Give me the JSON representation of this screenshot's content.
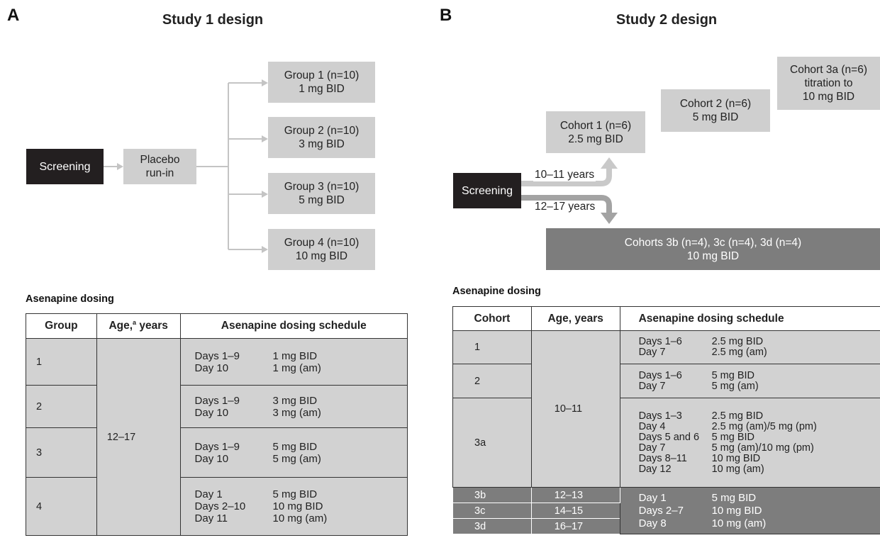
{
  "panelA": {
    "letter": "A",
    "title": "Study 1 design",
    "screening": "Screening",
    "placebo": [
      "Placebo",
      "run-in"
    ],
    "groups": [
      {
        "line1": "Group 1 (n=10)",
        "line2": "1 mg BID"
      },
      {
        "line1": "Group 2 (n=10)",
        "line2": "3 mg BID"
      },
      {
        "line1": "Group 3 (n=10)",
        "line2": "5 mg BID"
      },
      {
        "line1": "Group 4 (n=10)",
        "line2": "10 mg BID"
      }
    ],
    "table_label": "Asenapine dosing",
    "headers": {
      "group": "Group",
      "age_prefix": "Age,",
      "age_sup": "a",
      "age_suffix": " years",
      "schedule": "Asenapine dosing schedule"
    },
    "age_range": "12–17",
    "rows": [
      {
        "group": "1",
        "schedule": [
          [
            "Days 1–9",
            "1 mg BID"
          ],
          [
            "Day 10",
            "1 mg (am)"
          ]
        ]
      },
      {
        "group": "2",
        "schedule": [
          [
            "Days 1–9",
            "3 mg BID"
          ],
          [
            "Day 10",
            "3 mg (am)"
          ]
        ]
      },
      {
        "group": "3",
        "schedule": [
          [
            "Days 1–9",
            "5 mg BID"
          ],
          [
            "Day 10",
            "5 mg (am)"
          ]
        ]
      },
      {
        "group": "4",
        "schedule": [
          [
            "Day 1",
            "5 mg BID"
          ],
          [
            "Days 2–10",
            "10 mg BID"
          ],
          [
            "Day 11",
            "10 mg (am)"
          ]
        ]
      }
    ]
  },
  "panelB": {
    "letter": "B",
    "title": "Study 2 design",
    "screening": "Screening",
    "cohort1": [
      "Cohort 1 (n=6)",
      "2.5 mg BID"
    ],
    "cohort2": [
      "Cohort 2 (n=6)",
      "5 mg BID"
    ],
    "cohort3a": [
      "Cohort 3a (n=6)",
      "titration to",
      "10 mg BID"
    ],
    "cohorts3": [
      "Cohorts 3b (n=4), 3c (n=4), 3d (n=4)",
      "10 mg BID"
    ],
    "age_young": "10–11 years",
    "age_old": "12–17 years",
    "table_label": "Asenapine dosing",
    "headers": {
      "cohort": "Cohort",
      "age": "Age, years",
      "schedule": "Asenapine dosing schedule"
    },
    "age_young_cell": "10–11",
    "rows_light": [
      {
        "cohort": "1",
        "schedule": [
          [
            "Days 1–6",
            "2.5 mg BID"
          ],
          [
            "Day 7",
            "2.5 mg (am)"
          ]
        ]
      },
      {
        "cohort": "2",
        "schedule": [
          [
            "Days 1–6",
            "5 mg BID"
          ],
          [
            "Day 7",
            "5 mg (am)"
          ]
        ]
      },
      {
        "cohort": "3a",
        "schedule": [
          [
            "Days 1–3",
            "2.5 mg BID"
          ],
          [
            "Day 4",
            "2.5 mg (am)/5 mg (pm)"
          ],
          [
            "Days 5 and 6",
            "5 mg BID"
          ],
          [
            "Day 7",
            "5 mg (am)/10 mg (pm)"
          ],
          [
            "Days 8–11",
            "10 mg BID"
          ],
          [
            "Day 12",
            "10 mg (am)"
          ]
        ]
      }
    ],
    "rows_dark": [
      {
        "cohort": "3b",
        "age": "12–13"
      },
      {
        "cohort": "3c",
        "age": "14–15"
      },
      {
        "cohort": "3d",
        "age": "16–17"
      }
    ],
    "dark_schedule": [
      [
        "Day 1",
        "5 mg BID"
      ],
      [
        "Days 2–7",
        "10 mg BID"
      ],
      [
        "Day 8",
        "10 mg (am)"
      ]
    ]
  }
}
